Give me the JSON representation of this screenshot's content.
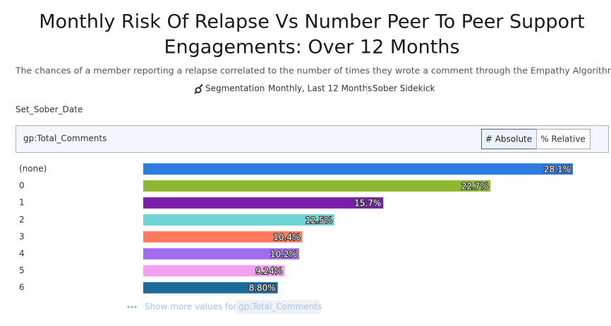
{
  "header": {
    "title_lines": [
      "Monthly Risk Of Relapse Vs Number Peer To Peer Support",
      "Engagements: Over 12 Months"
    ],
    "subtitle": "The chances of a member reporting a relapse correlated to the number of times they wrote a comment through the Empathy Algorithm. Sample siz...",
    "meta": [
      "Segmentation",
      "Monthly, Last 12 Months",
      "Sober Sidekick"
    ]
  },
  "filter_label": "Set_Sober_Date",
  "group_by": "gp:Total_Comments",
  "toggle": [
    "# Absolute",
    "% Relative"
  ],
  "chart_data": {
    "type": "bar",
    "orientation": "horizontal",
    "categories": [
      "(none)",
      "0",
      "1",
      "2",
      "3",
      "4",
      "5",
      "6"
    ],
    "values": [
      28.1,
      22.7,
      15.7,
      12.5,
      10.4,
      10.2,
      9.24,
      8.8
    ],
    "value_labels": [
      "28.1%",
      "22.7%",
      "15.7%",
      "12.5%",
      "10.4%",
      "10.2%",
      "9.24%",
      "8.80%"
    ],
    "colors": [
      "#2d7be0",
      "#8db82f",
      "#7b1fa8",
      "#6dd3d3",
      "#ff7a5c",
      "#a06cf0",
      "#f59ff0",
      "#1b6a9a"
    ]
  },
  "show_more": {
    "text": "Show more values for",
    "field": "gp:Total_Comments"
  }
}
